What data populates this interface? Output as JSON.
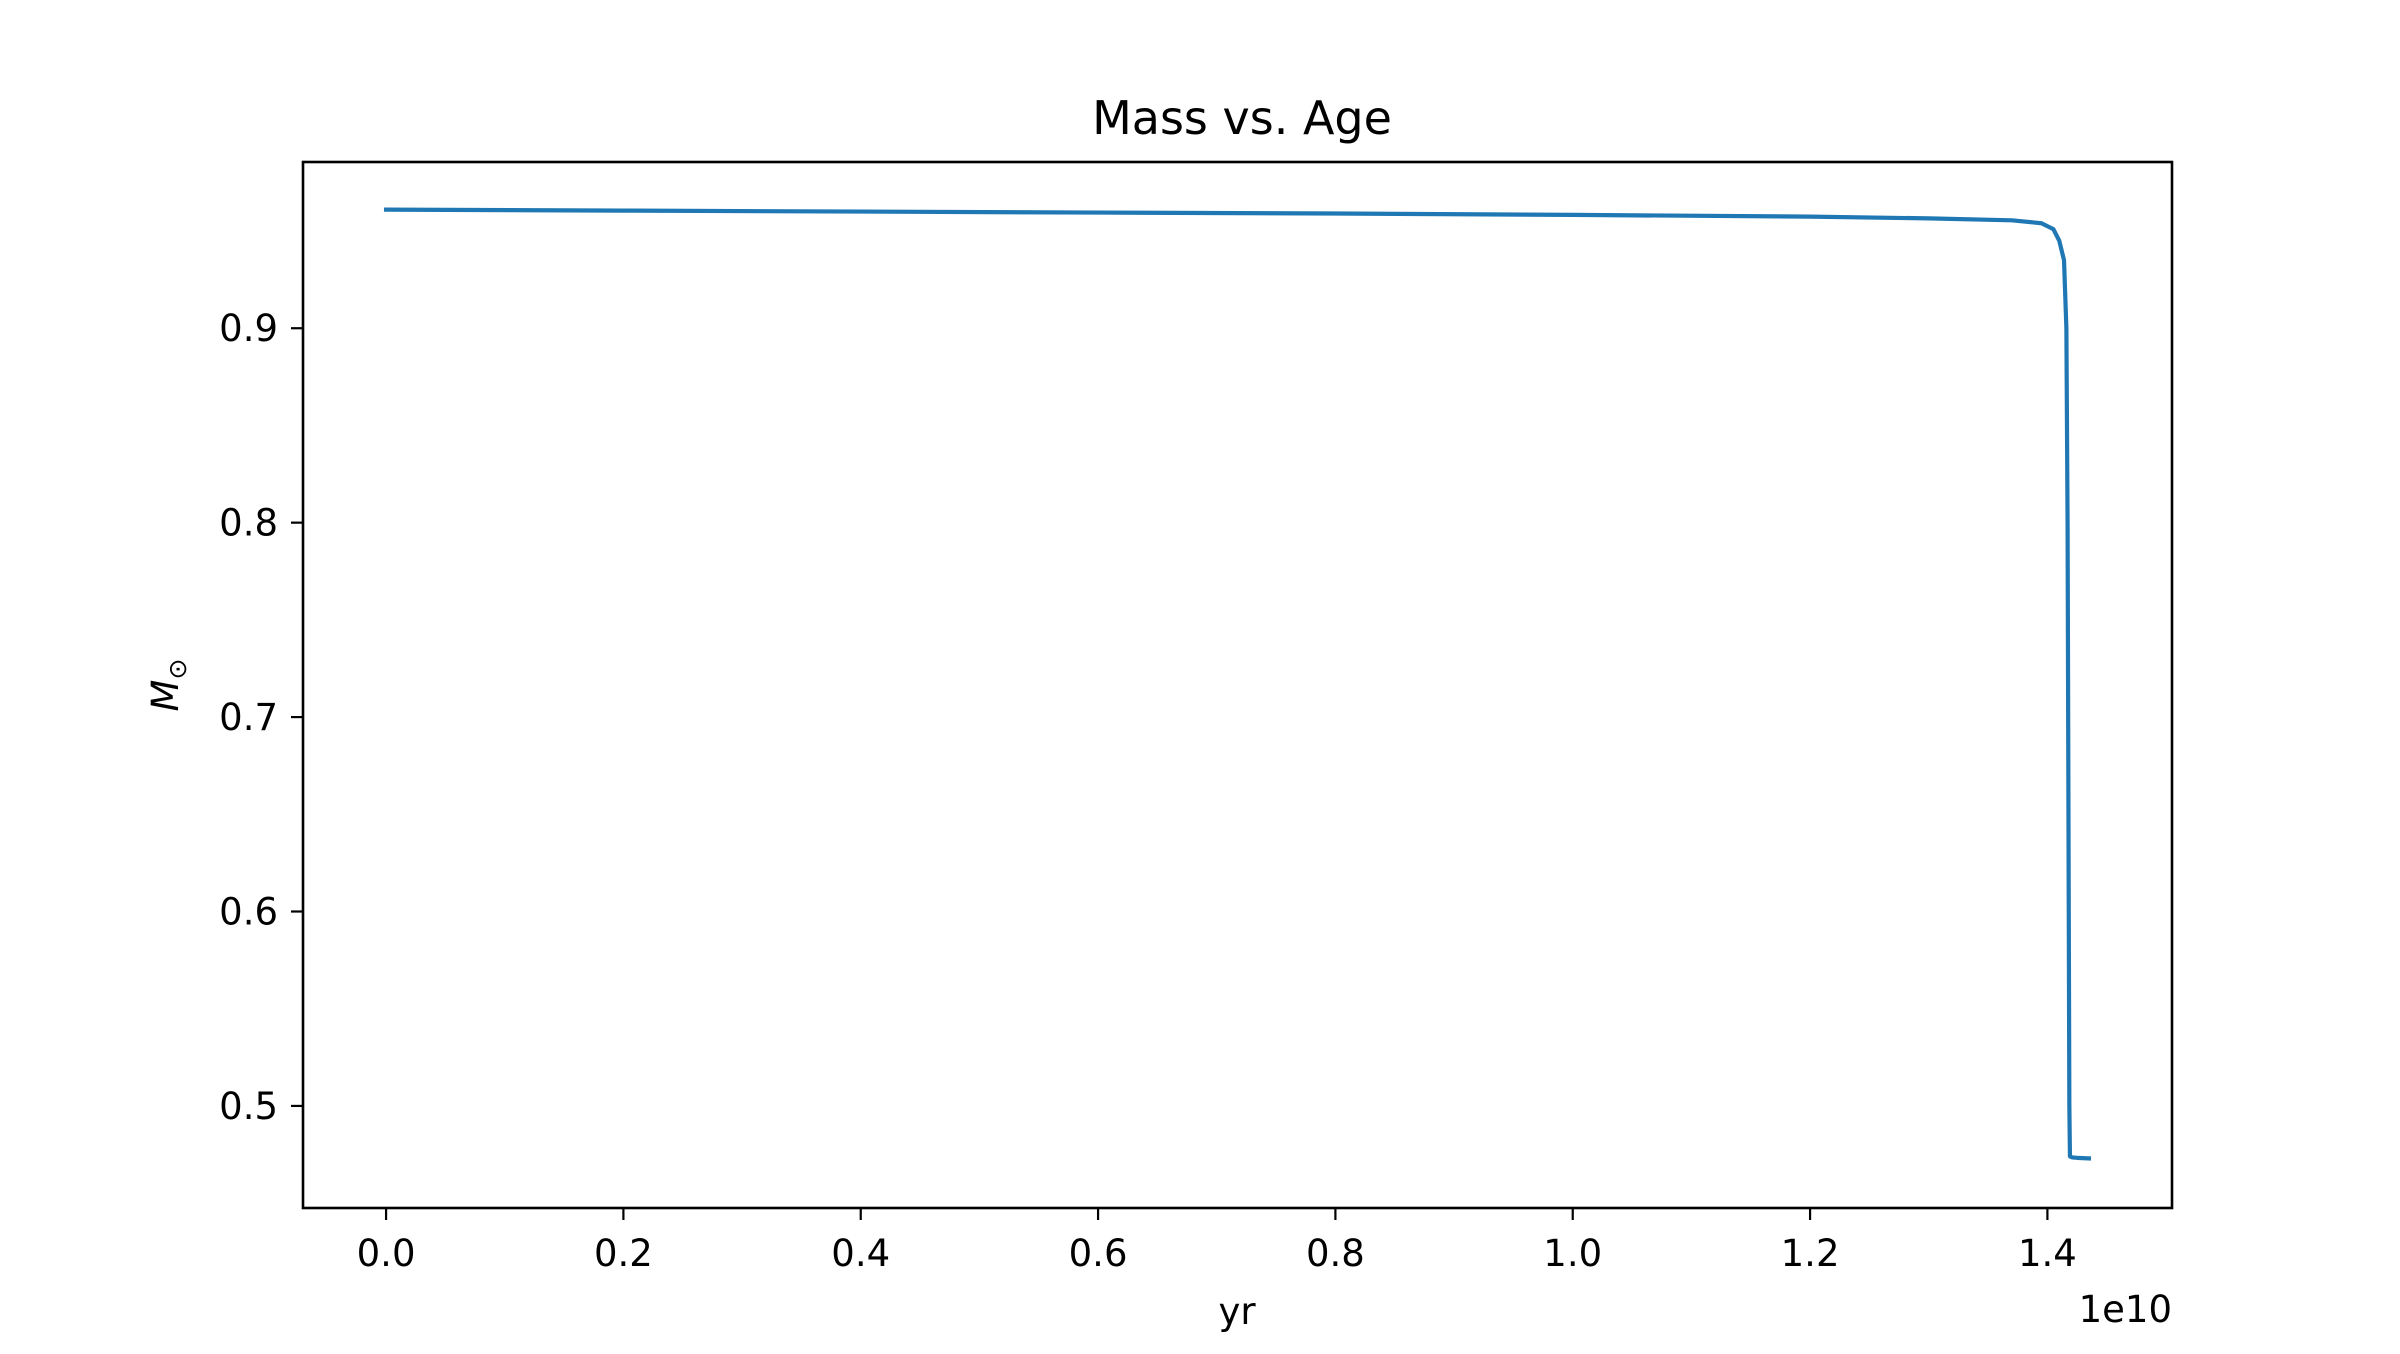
{
  "chart_data": {
    "type": "line",
    "title": "Mass vs. Age",
    "xlabel": "yr",
    "ylabel_symbol": "M",
    "ylabel_subscript": "⊙",
    "x_offset_text": "1e10",
    "x_scale_factor": 10000000000,
    "xlim": [
      -700000000.0,
      15050000000.0
    ],
    "ylim": [
      0.4475,
      0.9855
    ],
    "x_ticks": [
      0.0,
      2000000000.0,
      4000000000.0,
      6000000000.0,
      8000000000.0,
      10000000000.0,
      12000000000.0,
      14000000000.0
    ],
    "x_tick_labels": [
      "0.0",
      "0.2",
      "0.4",
      "0.6",
      "0.8",
      "1.0",
      "1.2",
      "1.4"
    ],
    "y_ticks": [
      0.5,
      0.6,
      0.7,
      0.8,
      0.9
    ],
    "y_tick_labels": [
      "0.5",
      "0.6",
      "0.7",
      "0.8",
      "0.9"
    ],
    "grid": false,
    "legend": false,
    "series": [
      {
        "color": "#1f77b4",
        "x": [
          0.0,
          2000000000.0,
          4000000000.0,
          6000000000.0,
          8000000000.0,
          10000000000.0,
          12000000000.0,
          13000000000.0,
          13700000000.0,
          13950000000.0,
          14050000000.0,
          14100000000.0,
          14140000000.0,
          14160000000.0,
          14170000000.0,
          14180000000.0,
          14185000000.0,
          14190000000.0,
          14210000000.0,
          14250000000.0,
          14350000000.0
        ],
        "y": [
          0.961,
          0.9605,
          0.96,
          0.9595,
          0.959,
          0.9583,
          0.9574,
          0.9565,
          0.9555,
          0.954,
          0.951,
          0.945,
          0.935,
          0.9,
          0.8,
          0.6,
          0.5,
          0.474,
          0.4735,
          0.4733,
          0.473
        ]
      }
    ]
  }
}
